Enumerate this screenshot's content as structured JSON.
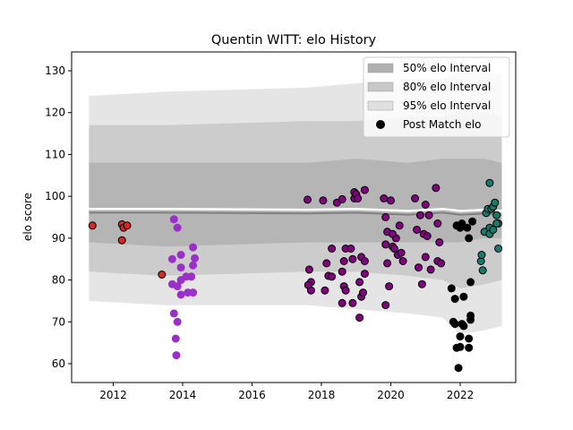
{
  "chart_data": {
    "type": "scatter",
    "title": "Quentin WITT: elo History",
    "xlabel": "",
    "ylabel": "elo score",
    "xlim": [
      2010.8,
      2023.6
    ],
    "ylim": [
      55.5,
      134.5
    ],
    "xticks": [
      2012,
      2014,
      2016,
      2018,
      2020,
      2022
    ],
    "yticks": [
      60,
      70,
      80,
      90,
      100,
      110,
      120,
      130
    ],
    "grid": false,
    "legend_position": "top-right",
    "legend": [
      {
        "label": "50% elo Interval",
        "kind": "band",
        "color": "#b0b0b0"
      },
      {
        "label": "80% elo Interval",
        "kind": "band",
        "color": "#c8c8c8"
      },
      {
        "label": "95% elo Interval",
        "kind": "band",
        "color": "#e0e0e0"
      },
      {
        "label": "Post Match elo",
        "kind": "marker",
        "color": "#000000"
      }
    ],
    "intervals": {
      "x": [
        2011.3,
        2013.5,
        2017.6,
        2019.0,
        2020.5,
        2021.5,
        2022.0,
        2022.7,
        2023.2
      ],
      "mean": [
        97.0,
        97.0,
        96.8,
        97.0,
        96.5,
        97.0,
        96.5,
        96.8,
        96.5
      ],
      "i50": {
        "low": [
          89,
          88,
          89,
          89,
          89,
          89,
          89,
          90,
          90
        ],
        "high": [
          108,
          108,
          108,
          109,
          108,
          109,
          109,
          109,
          108
        ]
      },
      "i80": {
        "low": [
          82,
          81,
          82,
          82,
          81,
          80,
          78,
          79,
          80
        ],
        "high": [
          117,
          117,
          118,
          118,
          119,
          119,
          120,
          120,
          119
        ]
      },
      "i95": {
        "low": [
          75,
          74,
          74,
          73,
          72,
          71,
          67,
          68,
          69
        ],
        "high": [
          124,
          125,
          126,
          127,
          128,
          128,
          130,
          130,
          129
        ]
      }
    },
    "series": [
      {
        "name": "",
        "color": "#d62728",
        "points": [
          [
            2011.4,
            93.0
          ],
          [
            2012.25,
            93.3
          ],
          [
            2012.3,
            92.5
          ],
          [
            2012.4,
            93.0
          ],
          [
            2012.25,
            89.5
          ],
          [
            2013.4,
            81.3
          ]
        ]
      },
      {
        "name": "",
        "color": "#9a30c8",
        "points": [
          [
            2013.75,
            94.5
          ],
          [
            2013.85,
            92.5
          ],
          [
            2013.7,
            85.0
          ],
          [
            2013.95,
            86.0
          ],
          [
            2014.3,
            87.8
          ],
          [
            2014.35,
            85.2
          ],
          [
            2014.3,
            83.5
          ],
          [
            2013.95,
            83.0
          ],
          [
            2014.1,
            80.8
          ],
          [
            2014.25,
            80.8
          ],
          [
            2013.95,
            80.0
          ],
          [
            2013.7,
            79.0
          ],
          [
            2013.85,
            78.5
          ],
          [
            2014.15,
            77.0
          ],
          [
            2014.3,
            77.0
          ],
          [
            2013.95,
            76.5
          ],
          [
            2013.75,
            72.0
          ],
          [
            2013.85,
            70.0
          ],
          [
            2013.8,
            66.0
          ],
          [
            2013.82,
            62.0
          ]
        ]
      },
      {
        "name": "",
        "color": "#800080",
        "points": [
          [
            2017.6,
            99.2
          ],
          [
            2017.65,
            82.5
          ],
          [
            2017.7,
            79.5
          ],
          [
            2017.62,
            78.8
          ],
          [
            2017.7,
            77.5
          ],
          [
            2018.05,
            99.0
          ],
          [
            2018.1,
            77.5
          ],
          [
            2018.15,
            84.0
          ],
          [
            2018.2,
            81.0
          ],
          [
            2018.3,
            87.5
          ],
          [
            2018.3,
            80.8
          ],
          [
            2018.45,
            98.5
          ],
          [
            2018.6,
            99.3
          ],
          [
            2018.7,
            87.5
          ],
          [
            2018.65,
            84.5
          ],
          [
            2018.6,
            82.0
          ],
          [
            2018.65,
            78.5
          ],
          [
            2018.7,
            77.5
          ],
          [
            2018.6,
            74.5
          ],
          [
            2018.85,
            87.5
          ],
          [
            2018.9,
            85.0
          ],
          [
            2018.95,
            99.5
          ],
          [
            2018.95,
            101.0
          ],
          [
            2019.0,
            100.5
          ],
          [
            2018.9,
            74.5
          ],
          [
            2019.05,
            99.5
          ],
          [
            2019.15,
            85.5
          ],
          [
            2019.1,
            79.5
          ],
          [
            2019.15,
            76.0
          ],
          [
            2019.1,
            71.0
          ],
          [
            2019.25,
            101.5
          ],
          [
            2019.25,
            84.5
          ],
          [
            2019.25,
            81.5
          ],
          [
            2019.2,
            77.0
          ],
          [
            2019.8,
            99.5
          ],
          [
            2019.85,
            95.0
          ],
          [
            2019.9,
            91.5
          ],
          [
            2019.85,
            88.5
          ],
          [
            2019.9,
            84.0
          ],
          [
            2019.95,
            78.5
          ],
          [
            2019.85,
            74.0
          ],
          [
            2020.0,
            99.0
          ],
          [
            2020.05,
            88.0
          ],
          [
            2020.1,
            87.5
          ],
          [
            2020.2,
            86.0
          ],
          [
            2020.15,
            90.0
          ],
          [
            2020.05,
            91.0
          ],
          [
            2020.25,
            93.0
          ],
          [
            2020.3,
            86.5
          ],
          [
            2020.35,
            84.5
          ],
          [
            2020.7,
            99.5
          ],
          [
            2020.75,
            92.0
          ],
          [
            2020.8,
            83.0
          ],
          [
            2020.9,
            79.0
          ],
          [
            2020.85,
            95.5
          ],
          [
            2020.95,
            91.0
          ],
          [
            2021.0,
            98.0
          ],
          [
            2021.05,
            90.5
          ],
          [
            2021.0,
            85.5
          ],
          [
            2021.1,
            95.5
          ],
          [
            2021.15,
            82.5
          ],
          [
            2021.3,
            102.0
          ],
          [
            2021.35,
            93.5
          ],
          [
            2021.35,
            84.5
          ],
          [
            2021.45,
            84.0
          ],
          [
            2021.4,
            89.0
          ]
        ]
      },
      {
        "name": "",
        "color": "#000000",
        "points": [
          [
            2021.75,
            78.0
          ],
          [
            2021.85,
            75.5
          ],
          [
            2021.8,
            70.0
          ],
          [
            2021.85,
            69.5
          ],
          [
            2021.9,
            63.8
          ],
          [
            2021.95,
            59.0
          ],
          [
            2021.9,
            93.0
          ],
          [
            2022.0,
            92.5
          ],
          [
            2022.05,
            93.5
          ],
          [
            2022.0,
            66.5
          ],
          [
            2022.0,
            64.0
          ],
          [
            2022.05,
            69.5
          ],
          [
            2022.1,
            76.0
          ],
          [
            2022.1,
            69.0
          ],
          [
            2022.2,
            92.5
          ],
          [
            2022.25,
            66.0
          ],
          [
            2022.25,
            90.0
          ],
          [
            2022.3,
            71.5
          ],
          [
            2022.3,
            70.5
          ],
          [
            2022.25,
            63.8
          ],
          [
            2022.35,
            94.0
          ],
          [
            2022.3,
            79.5
          ]
        ]
      },
      {
        "name": "",
        "color": "#1a7a6a",
        "points": [
          [
            2022.6,
            84.5
          ],
          [
            2022.62,
            86.0
          ],
          [
            2022.65,
            82.3
          ],
          [
            2022.7,
            91.5
          ],
          [
            2022.75,
            96.0
          ],
          [
            2022.8,
            97.0
          ],
          [
            2022.85,
            103.2
          ],
          [
            2022.85,
            92.5
          ],
          [
            2022.85,
            91.0
          ],
          [
            2022.9,
            97.0
          ],
          [
            2022.95,
            97.5
          ],
          [
            2022.95,
            92.0
          ],
          [
            2023.0,
            98.5
          ],
          [
            2023.05,
            95.5
          ],
          [
            2023.1,
            93.5
          ],
          [
            2023.05,
            93.5
          ],
          [
            2023.1,
            87.5
          ]
        ]
      }
    ]
  }
}
